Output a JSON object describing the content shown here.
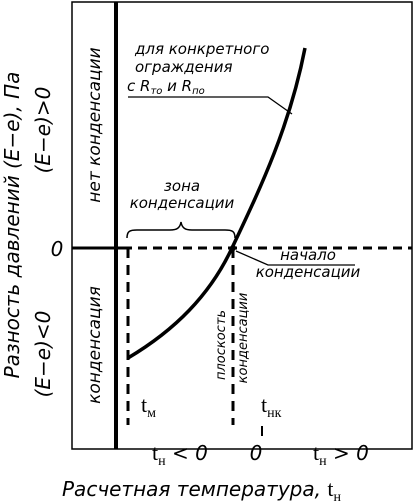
{
  "y_axis": {
    "label": "Разность давлений (E−e), Па",
    "positive": "(E−e)>0",
    "negative": "(E−e)<0",
    "zero": "0"
  },
  "regions": {
    "upper": "нет конденсации",
    "lower": "конденсация",
    "zone": [
      "зона",
      "конденсации"
    ]
  },
  "annotations": {
    "curve_note": [
      "для конкретного",
      "ограждения"
    ],
    "curve_note_line3": {
      "prefix": "с R",
      "sub1": "то",
      "mid": " и R",
      "sub2": "по"
    },
    "onset": [
      "начало",
      "конденсации"
    ],
    "plane": [
      "плоскость",
      "конденсации"
    ]
  },
  "temperatures": {
    "t_m": {
      "main": "t",
      "sub": "м"
    },
    "t_nk": {
      "main": "t",
      "sub": "нк"
    },
    "neg": {
      "main": "t",
      "sub": "н",
      "rest": " < 0"
    },
    "zero": "0",
    "pos": {
      "main": "t",
      "sub": "н",
      "rest": " > 0"
    }
  },
  "x_axis": {
    "label": "Расчетная температура, ",
    "var": {
      "main": "t",
      "sub": "н"
    }
  },
  "style": {
    "ink": "#000000",
    "background": "#ffffff"
  }
}
